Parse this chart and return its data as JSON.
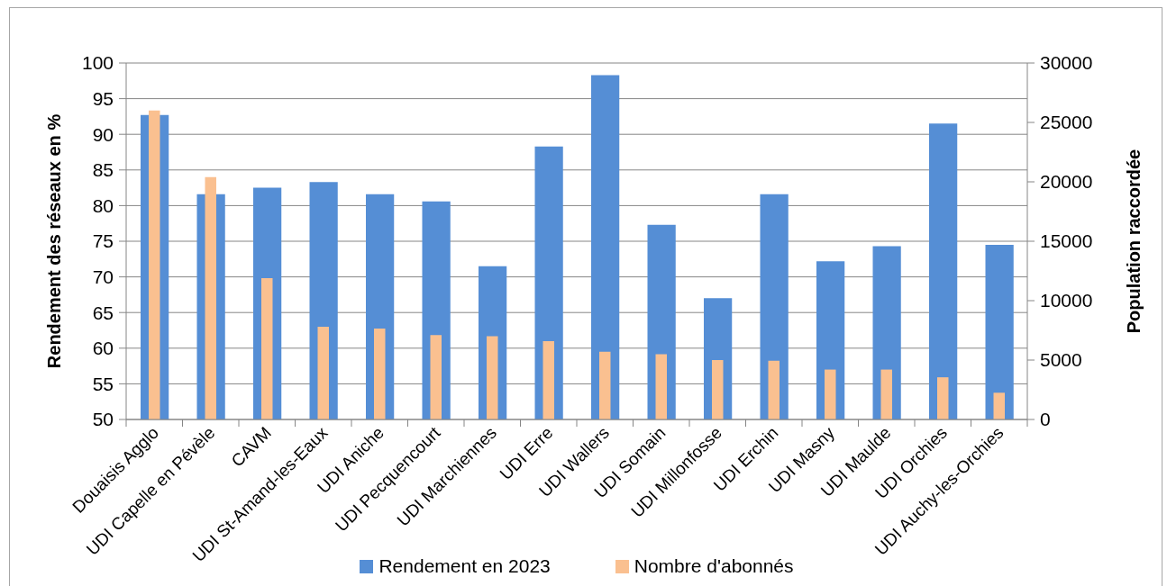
{
  "chart_data": {
    "type": "bar",
    "categories": [
      "Douaisis Agglo",
      "UDI Capelle en Pévèle",
      "CAVM",
      "UDI St-Amand-les-Eaux",
      "UDI Aniche",
      "UDI Pecquencourt",
      "UDI Marchiennes",
      "UDI Erre",
      "UDI Wallers",
      "UDI Somain",
      "UDI Millonfosse",
      "UDI Erchin",
      "UDI Masny",
      "UDI Maulde",
      "UDI Orchies",
      "UDI Auchy-les-Orchies"
    ],
    "series": [
      {
        "name": "Rendement en 2023",
        "color": "#558ed5",
        "values": [
          92.7,
          81.6,
          82.5,
          83.3,
          81.6,
          80.6,
          71.5,
          88.3,
          98.3,
          77.3,
          67.0,
          81.6,
          72.2,
          74.3,
          91.5,
          74.5
        ]
      },
      {
        "name": "Nombre d'abonnés",
        "color": "#fac090",
        "axis": "y2",
        "values": [
          26000,
          20400,
          11900,
          7800,
          7650,
          7100,
          7000,
          6600,
          5700,
          5500,
          5000,
          4950,
          4200,
          4200,
          3550,
          2250
        ]
      }
    ],
    "ylabel": "Rendement des réseaux en %",
    "y2label": "Population raccordée",
    "ylim": [
      50,
      100
    ],
    "yticks": [
      50,
      55,
      60,
      65,
      70,
      75,
      80,
      85,
      90,
      95,
      100
    ],
    "y2lim": [
      0,
      30000
    ],
    "y2ticks": [
      0,
      5000,
      10000,
      15000,
      20000,
      25000,
      30000
    ],
    "grid": "y",
    "legend": "bottom"
  }
}
